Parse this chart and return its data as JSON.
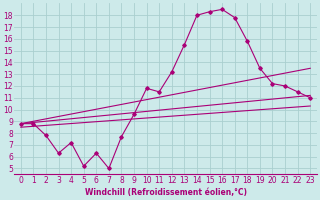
{
  "xlabel": "Windchill (Refroidissement éolien,°C)",
  "bg_color": "#cdeaea",
  "grid_color": "#aacfcf",
  "line_color": "#aa0077",
  "xlim": [
    -0.5,
    23.5
  ],
  "ylim": [
    4.5,
    19.0
  ],
  "xticks": [
    0,
    1,
    2,
    3,
    4,
    5,
    6,
    7,
    8,
    9,
    10,
    11,
    12,
    13,
    14,
    15,
    16,
    17,
    18,
    19,
    20,
    21,
    22,
    23
  ],
  "yticks": [
    5,
    6,
    7,
    8,
    9,
    10,
    11,
    12,
    13,
    14,
    15,
    16,
    17,
    18
  ],
  "line1_x": [
    0,
    1,
    2,
    3,
    4,
    5,
    6,
    7,
    8,
    9,
    10,
    11,
    12,
    13,
    14,
    15,
    16,
    17,
    18,
    19,
    20,
    21,
    22,
    23
  ],
  "line1_y": [
    8.8,
    8.8,
    7.8,
    6.3,
    7.2,
    5.2,
    6.3,
    5.0,
    7.7,
    9.6,
    11.8,
    11.5,
    13.2,
    15.5,
    18.0,
    18.3,
    18.5,
    17.8,
    15.8,
    13.5,
    12.2,
    12.0,
    11.5,
    11.0
  ],
  "line2_x": [
    0,
    23
  ],
  "line2_y": [
    8.8,
    13.5
  ],
  "line3_x": [
    0,
    23
  ],
  "line3_y": [
    8.8,
    11.2
  ],
  "line4_x": [
    0,
    23
  ],
  "line4_y": [
    8.5,
    10.3
  ],
  "tick_fontsize": 5.5,
  "xlabel_fontsize": 5.5
}
